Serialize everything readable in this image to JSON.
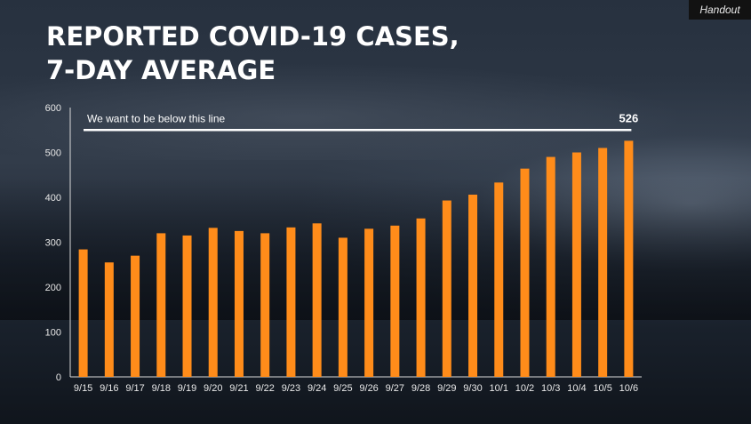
{
  "header": {
    "title_line1": "REPORTED COVID-19 CASES,",
    "title_line2": "7-DAY AVERAGE",
    "handout_label": "Handout"
  },
  "colors": {
    "bar": "#ff8c1a",
    "reference_line": "#ffffff",
    "axis": "#d9d9d9"
  },
  "chart_data": {
    "type": "bar",
    "title": "REPORTED COVID-19 CASES, 7-DAY AVERAGE",
    "xlabel": "",
    "ylabel": "",
    "ylim": [
      0,
      600
    ],
    "yticks": [
      0,
      100,
      200,
      300,
      400,
      500,
      600
    ],
    "categories": [
      "9/15",
      "9/16",
      "9/17",
      "9/18",
      "9/19",
      "9/20",
      "9/21",
      "9/22",
      "9/23",
      "9/24",
      "9/25",
      "9/26",
      "9/27",
      "9/28",
      "9/29",
      "9/30",
      "10/1",
      "10/2",
      "10/3",
      "10/4",
      "10/5",
      "10/6"
    ],
    "values": [
      284,
      255,
      270,
      320,
      315,
      332,
      325,
      320,
      333,
      342,
      310,
      330,
      337,
      353,
      393,
      406,
      433,
      464,
      490,
      500,
      510,
      526
    ],
    "reference_line": {
      "value": 550,
      "label": "We want to be below this line"
    },
    "data_labels": [
      {
        "category": "10/6",
        "text": "526"
      }
    ],
    "grid": false,
    "legend": "none"
  }
}
